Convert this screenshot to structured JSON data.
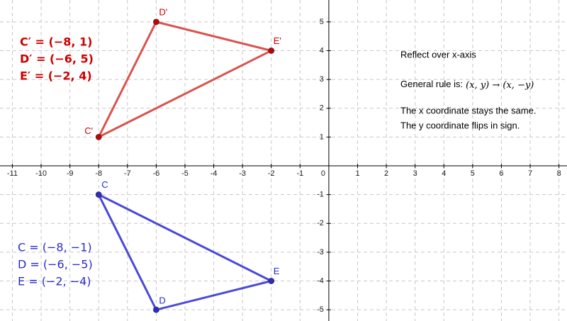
{
  "chart_data": {
    "type": "polygon",
    "xlim": [
      -11.43,
      8.28
    ],
    "ylim": [
      -5.39,
      5.76
    ],
    "xticks": [
      -11,
      -10,
      -9,
      -8,
      -7,
      -6,
      -5,
      -4,
      -3,
      -2,
      -1,
      0,
      1,
      2,
      3,
      4,
      5,
      6,
      7,
      8
    ],
    "yticks": [
      -5,
      -4,
      -3,
      -2,
      -1,
      1,
      2,
      3,
      4,
      5
    ],
    "grid": true,
    "series": [
      {
        "color": "#d9534f",
        "point_color": "#cc0000",
        "point_labels": [
          "C'",
          "D'",
          "E'"
        ],
        "x": [
          -8,
          -6,
          -2
        ],
        "values": [
          1,
          5,
          4
        ],
        "equations": [
          "C′ = (−8, 1)",
          "D′ = (−6, 5)",
          "E′ = (−2, 4)"
        ]
      },
      {
        "color": "#4a4ad6",
        "point_color": "#2b2bcc",
        "point_labels": [
          "C",
          "D",
          "E"
        ],
        "x": [
          -8,
          -6,
          -2
        ],
        "values": [
          -1,
          -5,
          -4
        ],
        "equations": [
          "C = (−8, −1)",
          "D = (−6, −5)",
          "E = (−2, −4)"
        ]
      }
    ],
    "notes": {
      "heading": "Reflect over x-axis",
      "rule_label": "General rule is:",
      "rule": "(x, y) → (x, −y)",
      "line1": "The x coordinate stays the same.",
      "line2": "The y coordinate flips in sign."
    }
  }
}
